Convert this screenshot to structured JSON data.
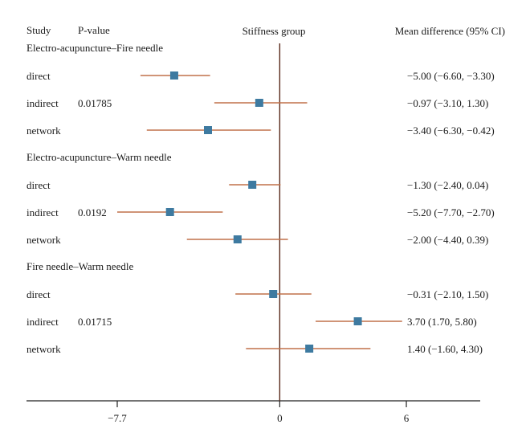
{
  "chart_data": {
    "type": "forest",
    "title": "",
    "headers": {
      "study": "Study",
      "pvalue": "P-value",
      "group": "Stiffness group",
      "effect": "Mean difference (95% CI)"
    },
    "xlim": [
      -12,
      9.5
    ],
    "xticks": [
      {
        "value": -7.7,
        "label": "−7.7"
      },
      {
        "value": 0,
        "label": "0"
      },
      {
        "value": 6,
        "label": "6"
      }
    ],
    "reference_line": 0,
    "colors": {
      "marker": "#3e7aa0",
      "ci": "#c0714a",
      "axis": "#222222",
      "ref": "#5a2a1a"
    },
    "groups": [
      {
        "label": "Electro-acupuncture–Fire needle",
        "pvalue": "0.01785",
        "rows": [
          {
            "study": "direct",
            "mean": -5.0,
            "lo": -6.6,
            "hi": -3.3,
            "text": "−5.00 (−6.60, −3.30)"
          },
          {
            "study": "indirect",
            "mean": -0.97,
            "lo": -3.1,
            "hi": 1.3,
            "text": "−0.97 (−3.10, 1.30)"
          },
          {
            "study": "network",
            "mean": -3.4,
            "lo": -6.3,
            "hi": -0.42,
            "text": "−3.40 (−6.30, −0.42)"
          }
        ]
      },
      {
        "label": "Electro-acupuncture–Warm needle",
        "pvalue": "0.0192",
        "rows": [
          {
            "study": "direct",
            "mean": -1.3,
            "lo": -2.4,
            "hi": 0.04,
            "text": "−1.30 (−2.40, 0.04)"
          },
          {
            "study": "indirect",
            "mean": -5.2,
            "lo": -7.7,
            "hi": -2.7,
            "text": "−5.20 (−7.70, −2.70)"
          },
          {
            "study": "network",
            "mean": -2.0,
            "lo": -4.4,
            "hi": 0.39,
            "text": "−2.00 (−4.40, 0.39)"
          }
        ]
      },
      {
        "label": "Fire needle–Warm needle",
        "pvalue": "0.01715",
        "rows": [
          {
            "study": "direct",
            "mean": -0.31,
            "lo": -2.1,
            "hi": 1.5,
            "text": "−0.31 (−2.10, 1.50)"
          },
          {
            "study": "indirect",
            "mean": 3.7,
            "lo": 1.7,
            "hi": 5.8,
            "text": "3.70 (1.70, 5.80)"
          },
          {
            "study": "network",
            "mean": 1.4,
            "lo": -1.6,
            "hi": 4.3,
            "text": "1.40 (−1.60, 4.30)"
          }
        ]
      }
    ]
  }
}
